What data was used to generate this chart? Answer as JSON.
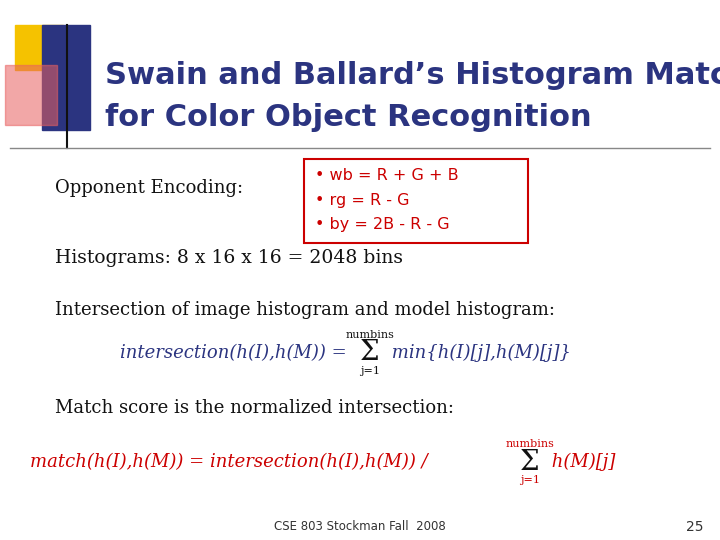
{
  "title_line1": "Swain and Ballard’s Histogram Matching",
  "title_line2": "for Color Object Recognition",
  "title_color": "#2B3480",
  "title_fontsize": 22,
  "bg_color": "#FFFFFF",
  "slide_number": "25",
  "footer_text": "CSE 803 Stockman Fall  2008",
  "opponent_label": "Opponent Encoding:",
  "bullet_color": "#CC0000",
  "bullet_items": [
    "wb = R + G + B",
    "rg = R - G",
    "by = 2B - R - G"
  ],
  "formula_blue": "#2B3480",
  "formula_red": "#CC0000",
  "body_color": "#111111",
  "body_fontsize": 13,
  "sq_yellow": "#F5C200",
  "sq_red": "#E86060",
  "sq_blue": "#2B3480",
  "line_color": "#888888"
}
